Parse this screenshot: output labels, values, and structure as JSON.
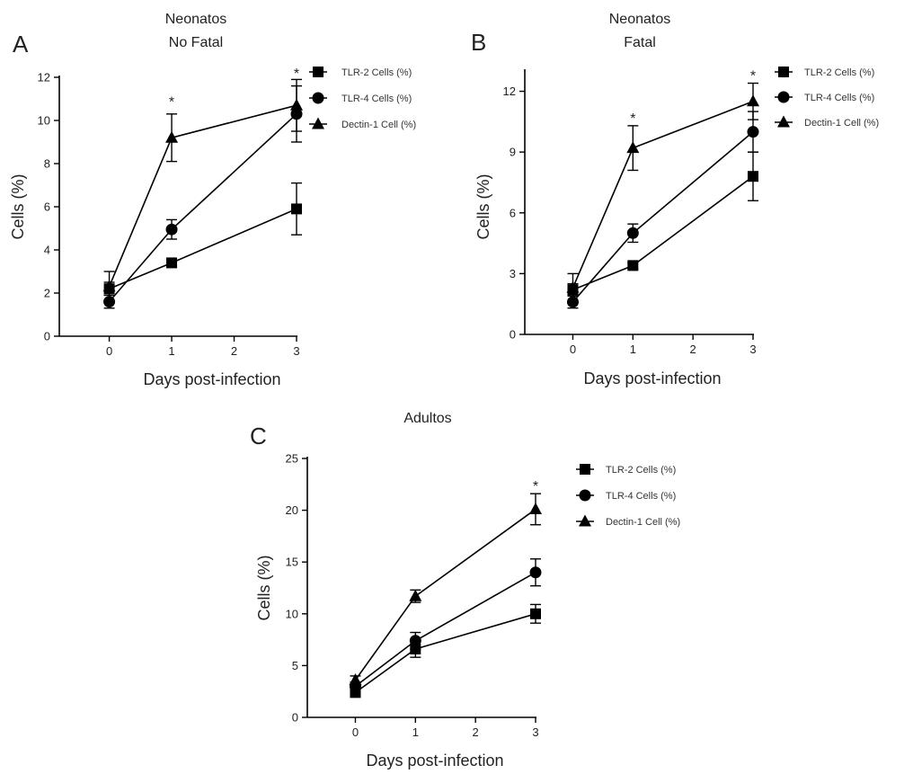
{
  "chart_data": [
    {
      "type": "line",
      "panel_label": "A",
      "title": [
        "Neonatos",
        "No Fatal"
      ],
      "xlabel": "Days post-infection",
      "ylabel": "Cells (%)",
      "xlim": [
        -0.8,
        3
      ],
      "ylim": [
        0,
        12
      ],
      "xticks": [
        0,
        1,
        2,
        3
      ],
      "yticks": [
        0,
        2,
        4,
        6,
        8,
        10,
        12
      ],
      "series": [
        {
          "name": "TLR-2 Cells (%)",
          "marker": "square",
          "x": [
            0,
            1,
            3
          ],
          "y": [
            2.2,
            3.4,
            5.9
          ],
          "err": [
            0.3,
            0.15,
            1.2
          ]
        },
        {
          "name": "TLR-4 Cells (%)",
          "marker": "circle",
          "x": [
            0,
            1,
            3
          ],
          "y": [
            1.6,
            4.95,
            10.3
          ],
          "err": [
            0.3,
            0.45,
            1.3
          ]
        },
        {
          "name": "Dectin-1 Cell (%)",
          "marker": "triangle",
          "x": [
            0,
            1,
            3
          ],
          "y": [
            2.3,
            9.2,
            10.7
          ],
          "err": [
            0.7,
            1.1,
            1.2
          ]
        }
      ],
      "annotations": [
        {
          "text": "*",
          "x": 1,
          "y": 10.9
        },
        {
          "text": "*",
          "x": 3,
          "y": 12.2
        }
      ],
      "legend": "right"
    },
    {
      "type": "line",
      "panel_label": "B",
      "title": [
        "Neonatos",
        "Fatal"
      ],
      "xlabel": "Days post-infection",
      "ylabel": "Cells (%)",
      "xlim": [
        -0.8,
        3
      ],
      "ylim": [
        0,
        13
      ],
      "xticks": [
        0,
        1,
        2,
        3
      ],
      "yticks": [
        0,
        3,
        6,
        9,
        12
      ],
      "series": [
        {
          "name": "TLR-2 Cells (%)",
          "marker": "square",
          "x": [
            0,
            1,
            3
          ],
          "y": [
            2.2,
            3.4,
            7.8
          ],
          "err": [
            0.3,
            0.15,
            1.2
          ]
        },
        {
          "name": "TLR-4 Cells (%)",
          "marker": "circle",
          "x": [
            0,
            1,
            3
          ],
          "y": [
            1.6,
            5.0,
            10.0
          ],
          "err": [
            0.3,
            0.45,
            1.0
          ]
        },
        {
          "name": "Dectin-1 Cell (%)",
          "marker": "triangle",
          "x": [
            0,
            1,
            3
          ],
          "y": [
            2.3,
            9.2,
            11.5
          ],
          "err": [
            0.7,
            1.1,
            0.9
          ]
        }
      ],
      "annotations": [
        {
          "text": "*",
          "x": 1,
          "y": 10.7
        },
        {
          "text": "*",
          "x": 3,
          "y": 12.8
        }
      ],
      "legend": "right"
    },
    {
      "type": "line",
      "panel_label": "C",
      "title": [
        "Adultos"
      ],
      "xlabel": "Days post-infection",
      "ylabel": "Cells (%)",
      "xlim": [
        -0.8,
        3
      ],
      "ylim": [
        0,
        25
      ],
      "xticks": [
        0,
        1,
        2,
        3
      ],
      "yticks": [
        0,
        5,
        10,
        15,
        20,
        25
      ],
      "series": [
        {
          "name": "TLR-2 Cells (%)",
          "marker": "square",
          "x": [
            0,
            1,
            3
          ],
          "y": [
            2.4,
            6.6,
            10.0
          ],
          "err": [
            0.4,
            0.8,
            0.9
          ]
        },
        {
          "name": "TLR-4 Cells (%)",
          "marker": "circle",
          "x": [
            0,
            1,
            3
          ],
          "y": [
            3.0,
            7.4,
            14.0
          ],
          "err": [
            0.4,
            0.8,
            1.3
          ]
        },
        {
          "name": "Dectin-1 Cell (%)",
          "marker": "triangle",
          "x": [
            0,
            1,
            3
          ],
          "y": [
            3.6,
            11.7,
            20.1
          ],
          "err": [
            0.4,
            0.6,
            1.5
          ]
        }
      ],
      "annotations": [
        {
          "text": "*",
          "x": 3,
          "y": 22.4
        }
      ],
      "legend": "right"
    }
  ]
}
